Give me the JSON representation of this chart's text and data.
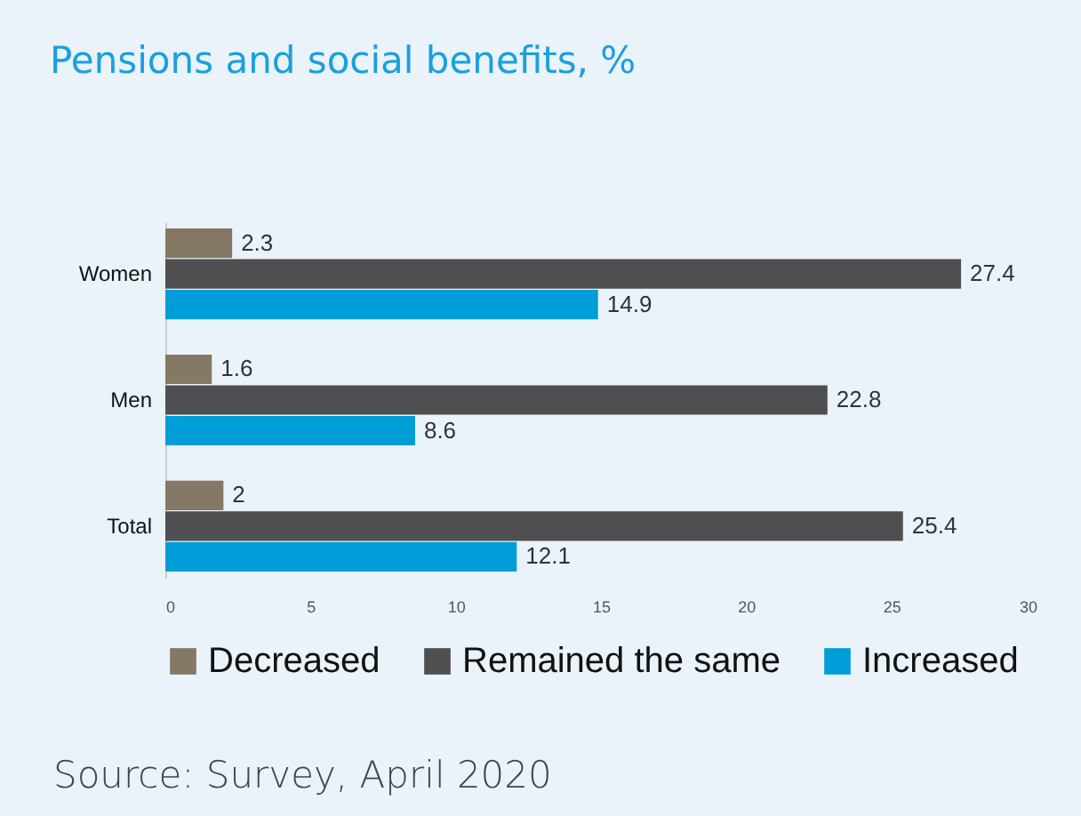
{
  "chart_data": {
    "type": "bar",
    "orientation": "horizontal",
    "title": "Pensions and social benefits, %",
    "categories": [
      "Women",
      "Men",
      "Total"
    ],
    "series": [
      {
        "name": "Decreased",
        "color": "#857864",
        "values": [
          2.3,
          1.6,
          2
        ]
      },
      {
        "name": "Remained the same",
        "color": "#4f4e51",
        "values": [
          27.4,
          22.8,
          25.4
        ]
      },
      {
        "name": "Increased",
        "color": "#009ed9",
        "values": [
          14.9,
          8.6,
          12.1
        ]
      }
    ],
    "xlim": [
      0,
      30
    ],
    "xticks": [
      0,
      5,
      10,
      15,
      20,
      25,
      30
    ],
    "data_labels": true,
    "legend": "bottom",
    "annotations": [
      "Source: Survey, April 2020"
    ]
  }
}
